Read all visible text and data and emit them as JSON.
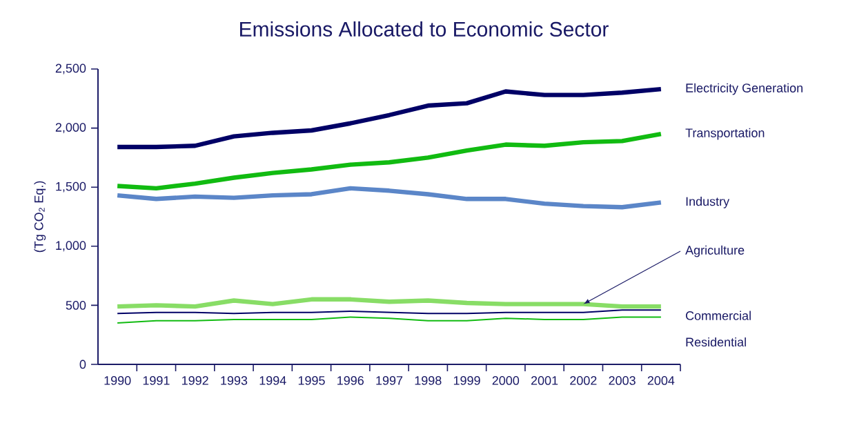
{
  "chart_data": {
    "type": "line",
    "title": "Emissions Allocated to Economic Sector",
    "ylabel": "(Tg CO$_{2}$ Eq.)",
    "categories": [
      "1990",
      "1991",
      "1992",
      "1993",
      "1994",
      "1995",
      "1996",
      "1997",
      "1998",
      "1999",
      "2000",
      "2001",
      "2002",
      "2003",
      "2004"
    ],
    "series": [
      {
        "name": "Electricity Generation",
        "color": "#000066",
        "values": [
          1840,
          1840,
          1850,
          1930,
          1960,
          1980,
          2040,
          2110,
          2190,
          2210,
          2310,
          2280,
          2280,
          2300,
          2330
        ]
      },
      {
        "name": "Transportation",
        "color": "#11bb11",
        "values": [
          1510,
          1490,
          1530,
          1580,
          1620,
          1650,
          1690,
          1710,
          1750,
          1810,
          1860,
          1850,
          1880,
          1890,
          1950
        ]
      },
      {
        "name": "Industry",
        "color": "#5b86c8",
        "values": [
          1430,
          1400,
          1420,
          1410,
          1430,
          1440,
          1490,
          1470,
          1440,
          1400,
          1400,
          1360,
          1340,
          1330,
          1370
        ]
      },
      {
        "name": "Agriculture",
        "color": "#88dd66",
        "values": [
          490,
          500,
          490,
          540,
          510,
          550,
          550,
          530,
          540,
          520,
          510,
          510,
          510,
          490,
          490
        ]
      },
      {
        "name": "Commercial",
        "color": "#000066",
        "values": [
          430,
          440,
          440,
          430,
          440,
          440,
          450,
          440,
          430,
          430,
          440,
          440,
          440,
          460,
          460
        ]
      },
      {
        "name": "Residential",
        "color": "#11bb11",
        "values": [
          350,
          370,
          370,
          380,
          380,
          380,
          400,
          390,
          370,
          370,
          390,
          380,
          380,
          400,
          400
        ]
      }
    ],
    "ylim": [
      0,
      2500
    ],
    "yticks": [
      0,
      500,
      {
        "value": 1000,
        "label": "1,000"
      },
      {
        "value": 1500,
        "label": "1,500"
      },
      {
        "value": 2000,
        "label": "2,000"
      },
      {
        "value": 2500,
        "label": "2,500"
      }
    ],
    "grid": false,
    "marker": "none",
    "line_style": "solid"
  }
}
